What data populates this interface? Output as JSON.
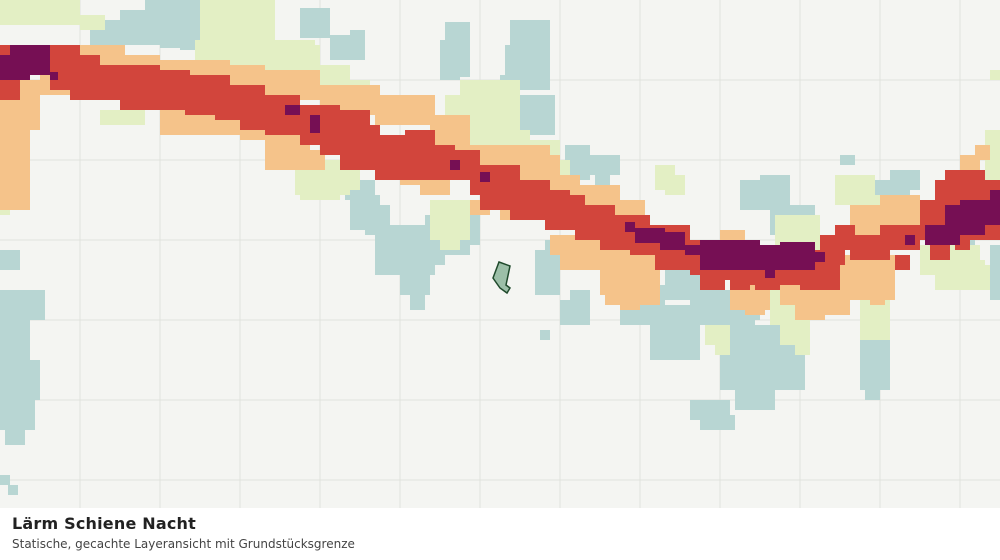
{
  "map": {
    "layer_title": "Lärm Schiene Nacht",
    "subtitle": "Statische, gecachte Layeransicht mit Grundstücksgrenze",
    "colors": {
      "background": "#f4f5f2",
      "grid": "#e0e2dd",
      "class_1": "#b8d6d3",
      "class_2": "#e3efc4",
      "class_3": "#f5c38a",
      "class_4": "#d2453c",
      "class_5": "#760f54",
      "parcel_fill": "#9cbfa8",
      "parcel_stroke": "#1f4a2c"
    }
  }
}
